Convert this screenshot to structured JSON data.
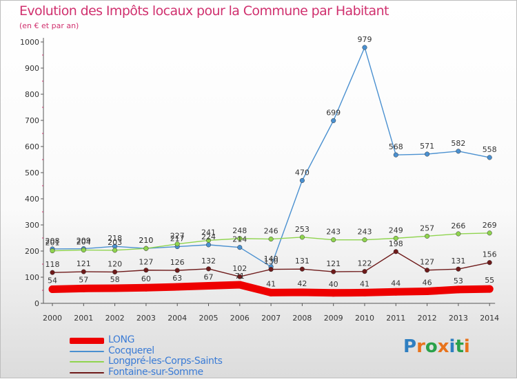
{
  "header": {
    "title": "Evolution des Impôts locaux pour la Commune par Habitant",
    "subtitle": "(en € et par an)"
  },
  "colors": {
    "title": "#d0306e",
    "legend_text": "#3a7bd5",
    "axis": "#333333"
  },
  "logo": {
    "text": "Proxiti",
    "letter_colors": [
      "#2f7fc1",
      "#e8731c",
      "#2aa14a",
      "#e8731c",
      "#2f7fc1",
      "#2aa14a",
      "#e8731c"
    ]
  },
  "chart_data": {
    "type": "line",
    "title": "Evolution des Impôts locaux pour la Commune par Habitant",
    "subtitle": "(en € et par an)",
    "xlabel": "",
    "ylabel": "",
    "categories": [
      "2000",
      "2001",
      "2002",
      "2003",
      "2004",
      "2005",
      "2006",
      "2007",
      "2008",
      "2009",
      "2010",
      "2011",
      "2012",
      "2013",
      "2014"
    ],
    "ylim": [
      0,
      1000
    ],
    "yticks": [
      "0",
      "100",
      "200",
      "300",
      "400",
      "500",
      "600",
      "700",
      "800",
      "900",
      "1000"
    ],
    "grid": false,
    "legend_position": "bottom-left",
    "series": [
      {
        "name": "LONG",
        "color": "#ee0000",
        "values": [
          54,
          57,
          58,
          60,
          63,
          67,
          71,
          41,
          42,
          40,
          41,
          44,
          46,
          53,
          55
        ],
        "labels": [
          "54",
          "57",
          "58",
          "60",
          "63",
          "67",
          "71",
          "41",
          "42",
          "40",
          "41",
          "44",
          "46",
          "53",
          "55"
        ]
      },
      {
        "name": "Cocquerel",
        "color": "#4a90d0",
        "values": [
          208,
          209,
          218,
          210,
          217,
          224,
          214,
          140,
          470,
          699,
          979,
          568,
          571,
          582,
          558
        ],
        "labels": [
          "208",
          "209",
          "218",
          "210",
          "217",
          "224",
          "214",
          "140",
          "470",
          "699",
          "979",
          "568",
          "571",
          "582",
          "558"
        ]
      },
      {
        "name": "Longpré-les-Corps-Saints",
        "color": "#8fd44e",
        "values": [
          201,
          204,
          203,
          210,
          227,
          241,
          248,
          246,
          253,
          243,
          243,
          249,
          257,
          266,
          269
        ],
        "labels": [
          "201",
          "204",
          "203",
          "210",
          "227",
          "241",
          "248",
          "246",
          "253",
          "243",
          "243",
          "249",
          "257",
          "266",
          "269"
        ]
      },
      {
        "name": "Fontaine-sur-Somme",
        "color": "#6e1a1a",
        "values": [
          118,
          121,
          120,
          127,
          126,
          132,
          102,
          130,
          131,
          121,
          122,
          198,
          127,
          131,
          156
        ],
        "labels": [
          "118",
          "121",
          "120",
          "127",
          "126",
          "132",
          "102",
          "130",
          "131",
          "121",
          "122",
          "198",
          "127",
          "131",
          "156"
        ]
      }
    ]
  }
}
